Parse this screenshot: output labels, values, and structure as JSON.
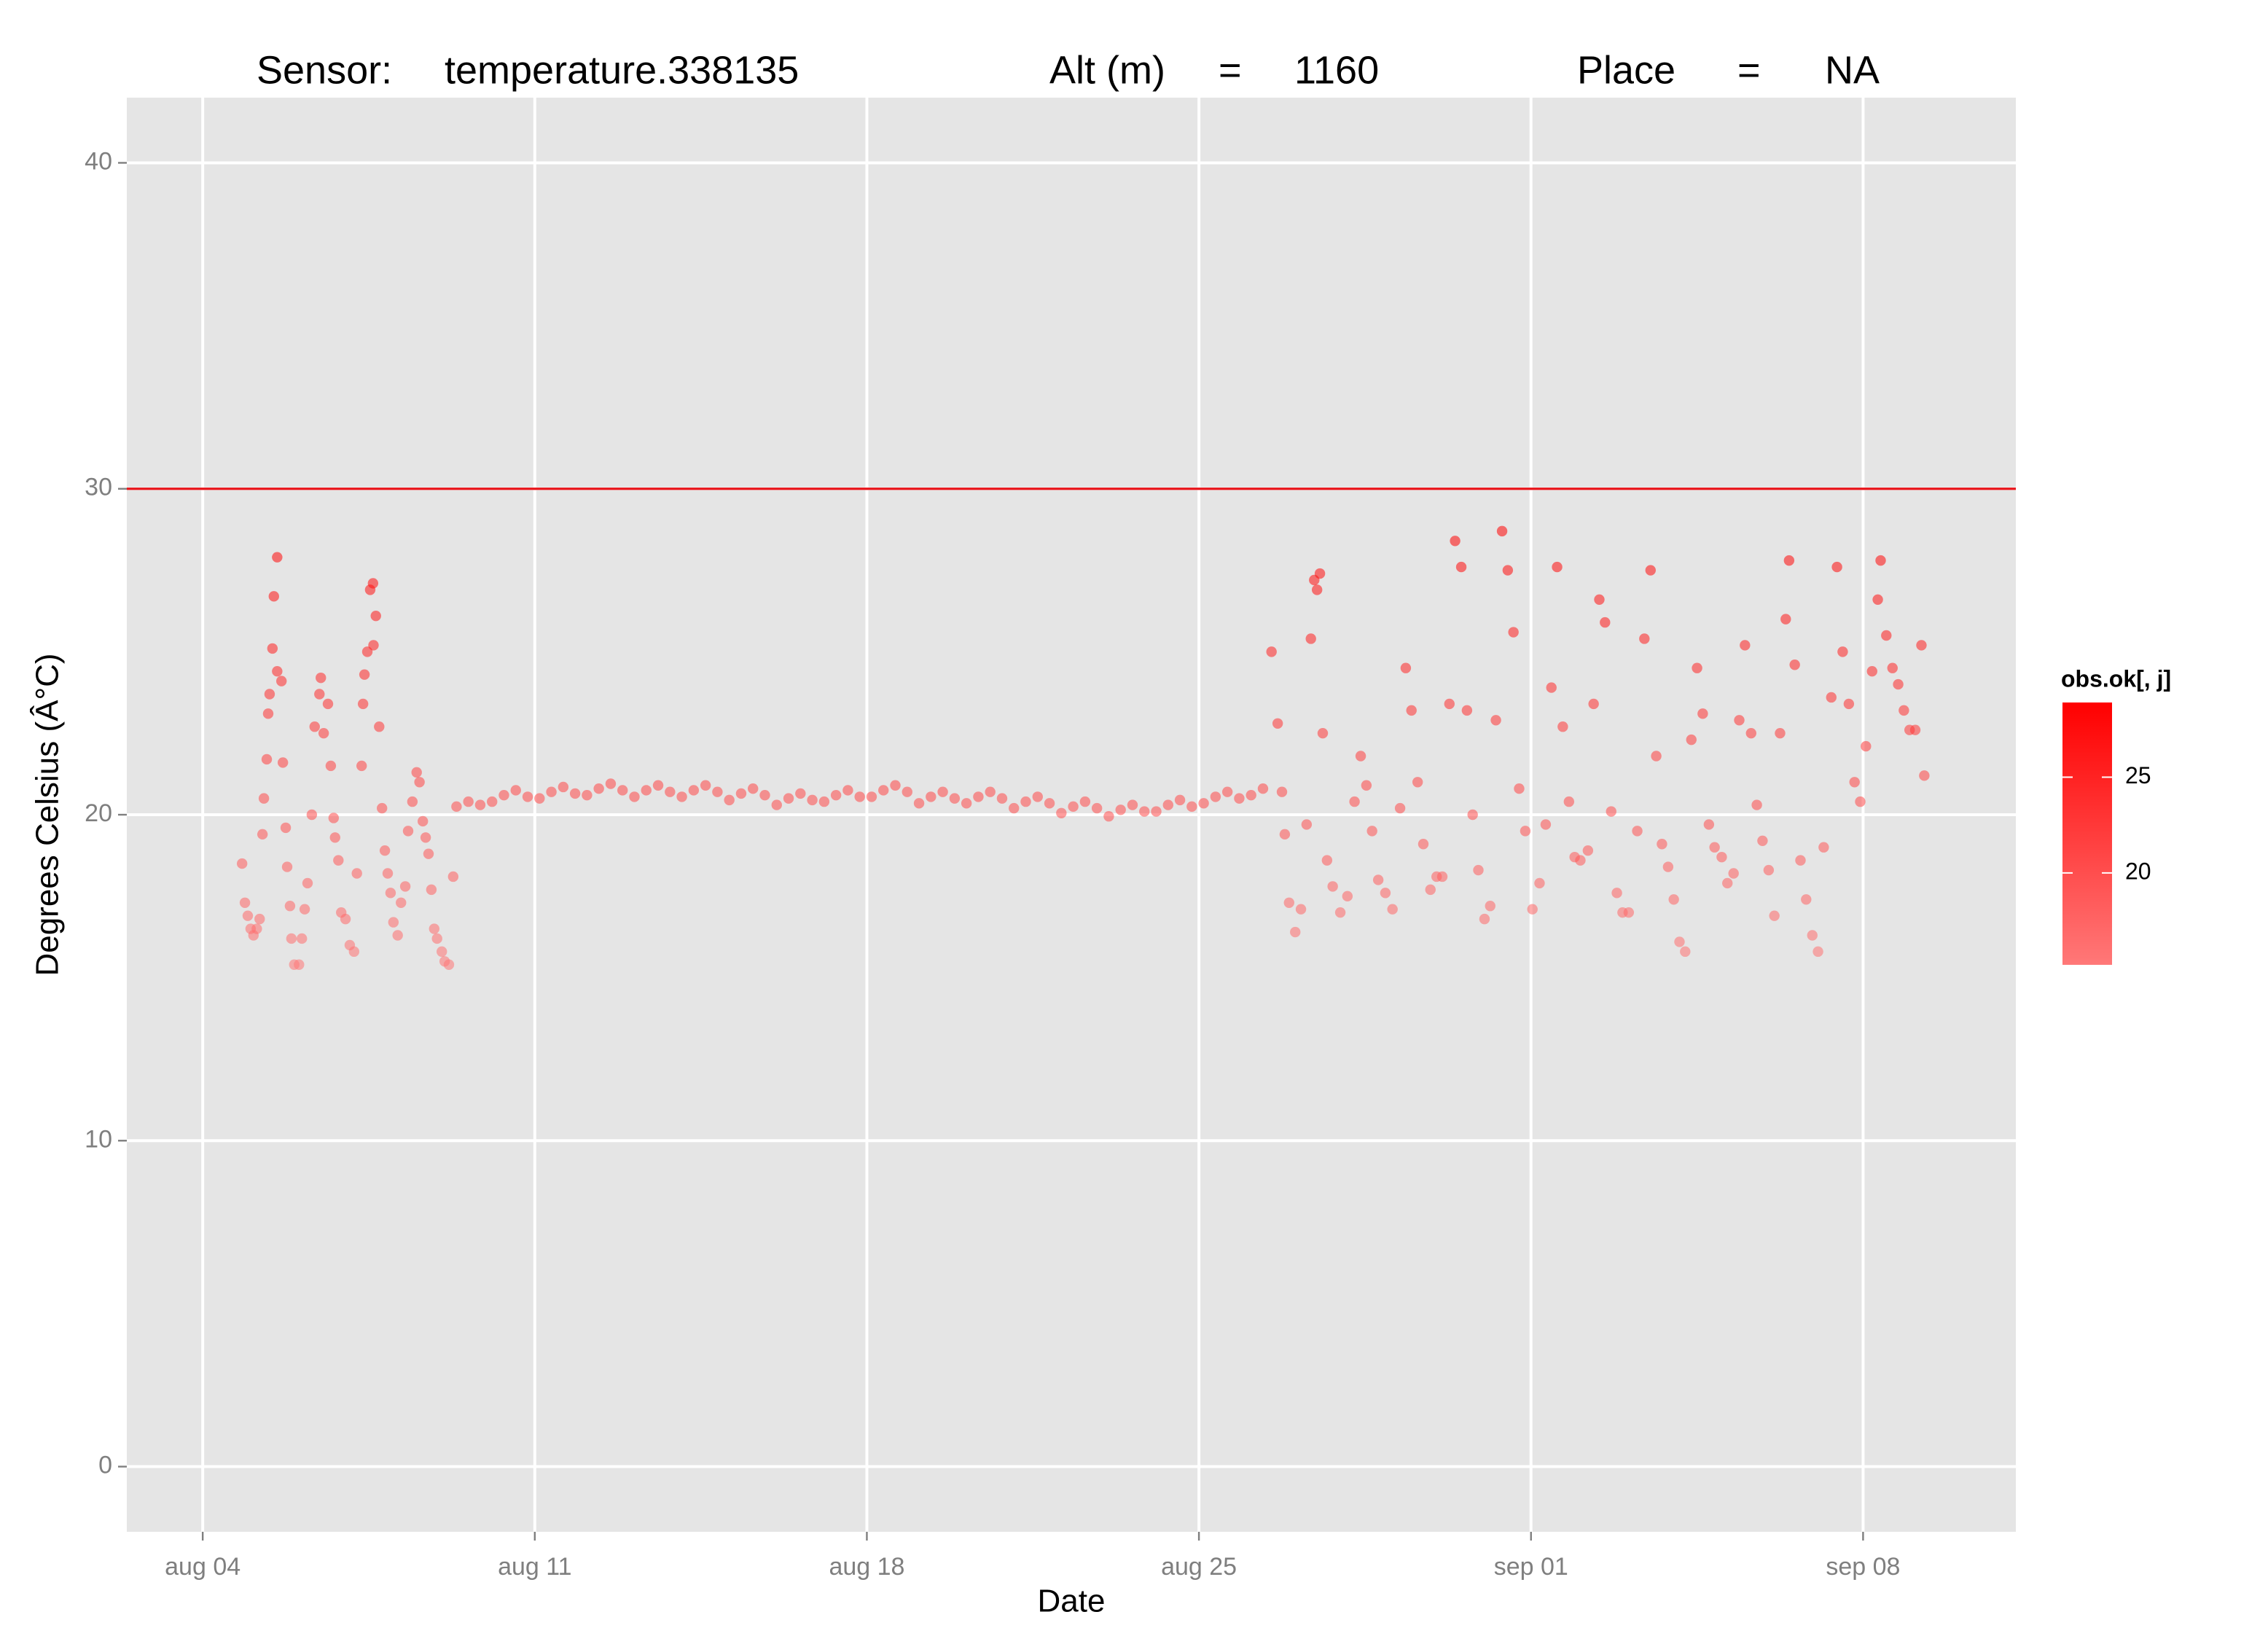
{
  "chart_data": {
    "type": "scatter",
    "title_parts": [
      "Sensor:",
      "temperature.338135",
      "Alt (m)",
      "=",
      "1160",
      "Place",
      "=",
      "NA"
    ],
    "x_label": "Date",
    "y_label": "Degrees Celsius (Â°C)",
    "xlim": [
      2.4,
      42.22
    ],
    "ylim": [
      -2,
      42
    ],
    "xticks": [
      {
        "value": 4,
        "label": "aug 04"
      },
      {
        "value": 11,
        "label": "aug 11"
      },
      {
        "value": 18,
        "label": "aug 18"
      },
      {
        "value": 25,
        "label": "aug 25"
      },
      {
        "value": 32,
        "label": "sep 01"
      },
      {
        "value": 39,
        "label": "sep 08"
      }
    ],
    "yticks": [
      0,
      10,
      20,
      30,
      40
    ],
    "grid": true,
    "hline": {
      "value": 30,
      "color": "#e8141a"
    },
    "color_scale": {
      "title": "obs.ok[, j]",
      "low": "#ff7878",
      "high": "#ff0000",
      "lim": [
        15.2,
        28.9
      ],
      "ticks": [
        20,
        25
      ]
    },
    "x": [
      4.83,
      4.89,
      4.95,
      5.01,
      5.07,
      5.14,
      5.2,
      5.26,
      5.29,
      5.35,
      5.38,
      5.41,
      5.47,
      5.5,
      5.57,
      5.57,
      5.66,
      5.69,
      5.75,
      5.78,
      5.84,
      5.87,
      5.93,
      6.03,
      6.09,
      6.15,
      6.21,
      6.3,
      6.36,
      6.46,
      6.49,
      6.55,
      6.64,
      6.7,
      6.76,
      6.79,
      6.86,
      6.92,
      7.01,
      7.1,
      7.19,
      7.25,
      7.35,
      7.38,
      7.41,
      7.47,
      7.53,
      7.59,
      7.6,
      7.65,
      7.72,
      7.78,
      7.84,
      7.9,
      7.96,
      8.02,
      8.11,
      8.18,
      8.27,
      8.33,
      8.42,
      8.51,
      8.57,
      8.64,
      8.7,
      8.76,
      8.82,
      8.88,
      8.94,
      9.04,
      9.1,
      9.19,
      9.28,
      9.35,
      9.6,
      9.85,
      10.1,
      10.35,
      10.6,
      10.85,
      11.1,
      11.35,
      11.6,
      11.85,
      12.1,
      12.35,
      12.6,
      12.85,
      13.1,
      13.35,
      13.6,
      13.85,
      14.1,
      14.35,
      14.6,
      14.85,
      15.1,
      15.35,
      15.6,
      15.85,
      16.1,
      16.35,
      16.6,
      16.85,
      17.1,
      17.35,
      17.6,
      17.85,
      18.1,
      18.35,
      18.6,
      18.85,
      19.1,
      19.35,
      19.6,
      19.85,
      20.1,
      20.35,
      20.6,
      20.85,
      21.1,
      21.35,
      21.6,
      21.85,
      22.1,
      22.35,
      22.6,
      22.85,
      23.1,
      23.35,
      23.6,
      23.85,
      24.1,
      24.35,
      24.6,
      24.85,
      25.1,
      25.35,
      25.6,
      25.85,
      26.1,
      26.35,
      26.53,
      26.66,
      26.75,
      26.81,
      26.9,
      27.03,
      27.15,
      27.27,
      27.36,
      27.43,
      27.49,
      27.55,
      27.61,
      27.7,
      27.82,
      27.98,
      28.13,
      28.28,
      28.41,
      28.53,
      28.65,
      28.78,
      28.93,
      29.08,
      29.24,
      29.36,
      29.48,
      29.61,
      29.73,
      29.88,
      30.01,
      30.13,
      30.28,
      30.4,
      30.53,
      30.65,
      30.77,
      30.89,
      31.02,
      31.14,
      31.26,
      31.39,
      31.51,
      31.63,
      31.75,
      31.88,
      32.03,
      32.18,
      32.31,
      32.43,
      32.55,
      32.67,
      32.8,
      32.92,
      33.04,
      33.2,
      33.32,
      33.44,
      33.56,
      33.69,
      33.81,
      33.93,
      34.06,
      34.24,
      34.39,
      34.52,
      34.64,
      34.76,
      34.89,
      35.01,
      35.13,
      35.25,
      35.38,
      35.5,
      35.62,
      35.75,
      35.87,
      36.02,
      36.14,
      36.27,
      36.39,
      36.51,
      36.64,
      36.76,
      36.88,
      37.01,
      37.13,
      37.25,
      37.37,
      37.44,
      37.56,
      37.68,
      37.8,
      37.93,
      38.05,
      38.17,
      38.33,
      38.45,
      38.57,
      38.7,
      38.82,
      38.94,
      39.06,
      39.19,
      39.31,
      39.37,
      39.49,
      39.62,
      39.74,
      39.86,
      39.98,
      40.1,
      40.23,
      40.29
    ],
    "values": [
      18.5,
      17.3,
      16.9,
      16.5,
      16.3,
      16.5,
      16.8,
      19.4,
      20.5,
      21.7,
      23.1,
      23.7,
      25.1,
      26.7,
      27.9,
      24.4,
      24.1,
      21.6,
      19.6,
      18.4,
      17.2,
      16.2,
      15.4,
      15.4,
      16.2,
      17.1,
      17.9,
      20.0,
      22.7,
      23.7,
      24.2,
      22.5,
      23.4,
      21.5,
      19.9,
      19.3,
      18.6,
      17.0,
      16.8,
      16.0,
      15.8,
      18.2,
      21.5,
      23.4,
      24.3,
      25.0,
      26.9,
      27.1,
      25.2,
      26.1,
      22.7,
      20.2,
      18.9,
      18.2,
      17.6,
      16.7,
      16.3,
      17.3,
      17.8,
      19.5,
      20.4,
      21.3,
      21.0,
      19.8,
      19.3,
      18.8,
      17.7,
      16.5,
      16.2,
      15.8,
      15.5,
      15.4,
      18.1,
      20.25,
      20.4,
      20.3,
      20.4,
      20.6,
      20.75,
      20.55,
      20.5,
      20.7,
      20.85,
      20.65,
      20.6,
      20.8,
      20.95,
      20.75,
      20.55,
      20.75,
      20.9,
      20.7,
      20.55,
      20.75,
      20.9,
      20.7,
      20.45,
      20.65,
      20.8,
      20.6,
      20.3,
      20.5,
      20.65,
      20.45,
      20.4,
      20.6,
      20.75,
      20.55,
      20.55,
      20.75,
      20.9,
      20.7,
      20.35,
      20.55,
      20.7,
      20.5,
      20.35,
      20.55,
      20.7,
      20.5,
      20.2,
      20.4,
      20.55,
      20.35,
      20.05,
      20.25,
      20.4,
      20.2,
      19.95,
      20.15,
      20.3,
      20.1,
      20.1,
      20.3,
      20.45,
      20.25,
      20.35,
      20.55,
      20.7,
      20.5,
      20.6,
      20.8,
      25.0,
      22.8,
      20.7,
      19.4,
      17.3,
      16.4,
      17.1,
      19.7,
      25.4,
      27.2,
      26.9,
      27.4,
      22.5,
      18.6,
      17.8,
      17.0,
      17.5,
      20.4,
      21.8,
      20.9,
      19.5,
      18.0,
      17.6,
      17.1,
      20.2,
      24.5,
      23.2,
      21.0,
      19.1,
      17.7,
      18.1,
      18.1,
      23.4,
      28.4,
      27.6,
      23.2,
      20.0,
      18.3,
      16.8,
      17.2,
      22.9,
      28.7,
      27.5,
      25.6,
      20.8,
      19.5,
      17.1,
      17.9,
      19.7,
      23.9,
      27.6,
      22.7,
      20.4,
      18.7,
      18.6,
      18.9,
      23.4,
      26.6,
      25.9,
      20.1,
      17.6,
      17.0,
      17.0,
      19.5,
      25.4,
      27.5,
      21.8,
      19.1,
      18.4,
      17.4,
      16.1,
      15.8,
      22.3,
      24.5,
      23.1,
      19.7,
      19.0,
      18.7,
      17.9,
      18.2,
      22.9,
      25.2,
      22.5,
      20.3,
      19.2,
      18.3,
      16.9,
      22.5,
      26.0,
      27.8,
      24.6,
      18.6,
      17.4,
      16.3,
      15.8,
      19.0,
      23.6,
      27.6,
      25.0,
      23.4,
      21.0,
      20.4,
      22.1,
      24.4,
      26.6,
      27.8,
      25.5,
      24.5,
      24.0,
      23.2,
      22.6,
      22.6,
      25.2,
      21.2
    ]
  }
}
